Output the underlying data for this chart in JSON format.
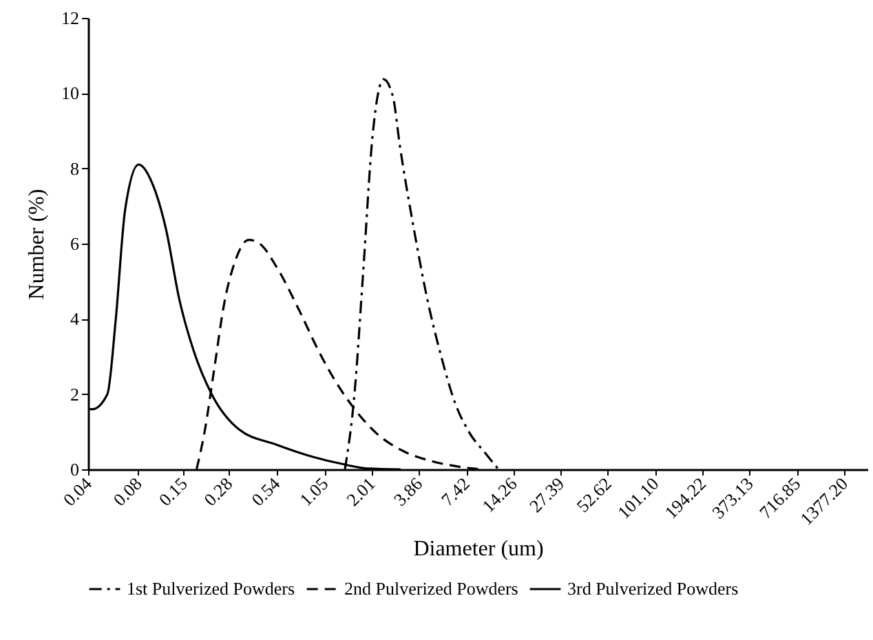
{
  "chart_data": {
    "type": "line",
    "xlabel": "Diameter (um)",
    "ylabel": "Number (%)",
    "log": "x",
    "xlim": [
      0.04,
      1900
    ],
    "xticks": [
      0.04,
      0.08,
      0.15,
      0.28,
      0.54,
      1.05,
      2.01,
      3.86,
      7.42,
      14.26,
      27.39,
      52.62,
      {
        "value": 101.1,
        "label": "101.10"
      },
      194.22,
      373.13,
      716.85,
      {
        "value": 1377.2,
        "label": "1377.20"
      }
    ],
    "ylim": [
      0,
      12
    ],
    "yticks": [
      0,
      2,
      4,
      6,
      8,
      10,
      12
    ],
    "grid": false,
    "legend": "bottom",
    "series": [
      {
        "name": "1st Pulverized Powders",
        "color": "#000000",
        "line_style": "dashdot",
        "x": [
          1.39,
          1.59,
          1.78,
          2.04,
          2.37,
          2.7,
          2.97,
          3.6,
          4.35,
          5.26,
          6.36,
          7.7,
          9.8,
          11.6
        ],
        "values": [
          0,
          2.05,
          5.1,
          8.9,
          10.37,
          9.9,
          8.6,
          6.4,
          4.5,
          3.0,
          1.77,
          1.0,
          0.4,
          0
        ]
      },
      {
        "name": "2nd Pulverized Powders",
        "color": "#000000",
        "line_style": "dashed",
        "x": [
          0.179,
          0.2,
          0.229,
          0.262,
          0.303,
          0.368,
          0.428,
          0.537,
          0.744,
          0.953,
          1.216,
          1.59,
          2.16,
          3.13,
          4.58,
          6.7,
          9.0
        ],
        "values": [
          0,
          1.0,
          2.7,
          4.4,
          5.5,
          6.1,
          6.0,
          5.4,
          4.2,
          3.2,
          2.35,
          1.6,
          0.95,
          0.48,
          0.22,
          0.07,
          0
        ]
      },
      {
        "name": "3rd Pulverized Powders",
        "color": "#000000",
        "line_style": "solid",
        "x": [
          0.0408,
          0.0424,
          0.0522,
          0.0585,
          0.0667,
          0.0804,
          0.0971,
          0.1171,
          0.1413,
          0.1705,
          0.2204,
          0.322,
          0.537,
          0.896,
          1.316,
          1.93,
          3.0
        ],
        "values": [
          1.6,
          1.6,
          2.0,
          3.95,
          6.9,
          8.1,
          7.6,
          6.4,
          4.5,
          3.2,
          2.0,
          1.06,
          0.66,
          0.33,
          0.15,
          0.02,
          0
        ]
      }
    ]
  }
}
